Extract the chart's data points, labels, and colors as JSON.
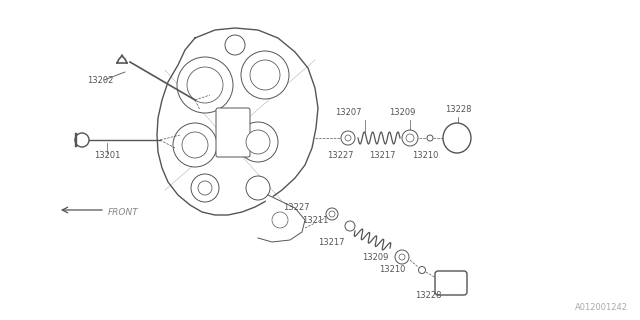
{
  "background_color": "#ffffff",
  "line_color": "#555555",
  "fig_width": 6.4,
  "fig_height": 3.2,
  "dpi": 100,
  "watermark": "A012001242",
  "front_label": "FRONT"
}
